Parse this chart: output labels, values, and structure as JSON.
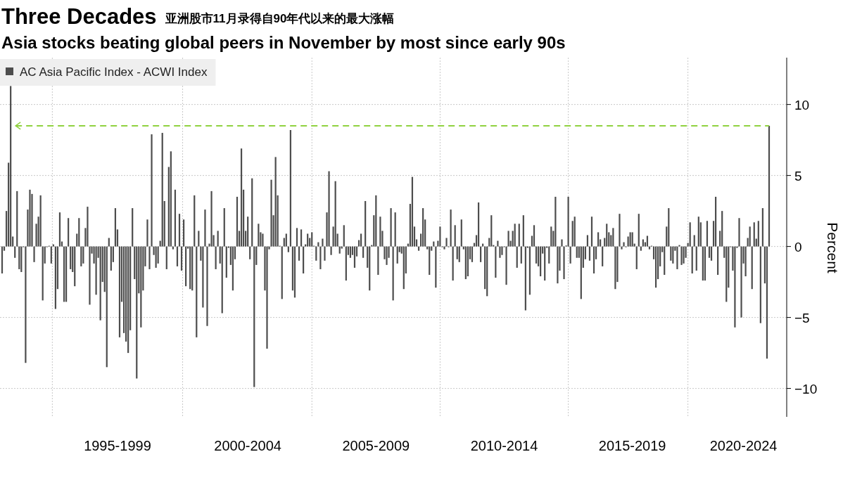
{
  "chart_data": {
    "type": "bar",
    "title": "Three Decades",
    "subtitle": "Asia stocks beating global peers in November by most since early 90s",
    "annotations": [
      "亚洲股市11月录得自90年代以来的最大涨幅"
    ],
    "ylabel": "Percent",
    "categories": [
      null,
      null,
      null,
      null,
      null,
      null,
      null,
      null,
      null,
      null,
      null,
      null,
      null,
      null,
      null,
      null,
      null,
      null,
      null,
      null,
      null,
      null,
      null,
      null,
      null,
      null,
      null,
      null,
      null,
      null,
      null,
      null,
      null,
      null,
      null,
      null,
      null,
      null,
      null,
      null,
      null,
      null,
      null,
      null,
      null,
      null,
      null,
      null,
      null,
      null,
      null,
      null,
      null,
      null,
      "1995-1999",
      null,
      null,
      null,
      null,
      null,
      null,
      null,
      null,
      null,
      null,
      null,
      null,
      null,
      null,
      null,
      null,
      null,
      null,
      null,
      null,
      null,
      null,
      null,
      null,
      null,
      null,
      null,
      null,
      null,
      null,
      null,
      null,
      null,
      null,
      null,
      null,
      null,
      null,
      null,
      null,
      null,
      null,
      null,
      null,
      null,
      null,
      null,
      null,
      null,
      null,
      null,
      null,
      null,
      null,
      null,
      null,
      null,
      null,
      null,
      null,
      "2000-2004",
      null,
      null,
      null,
      null,
      null,
      null,
      null,
      null,
      null,
      null,
      null,
      null,
      null,
      null,
      null,
      null,
      null,
      null,
      null,
      null,
      null,
      null,
      null,
      null,
      null,
      null,
      null,
      null,
      null,
      null,
      null,
      null,
      null,
      null,
      null,
      null,
      null,
      null,
      null,
      null,
      null,
      null,
      null,
      null,
      null,
      null,
      null,
      null,
      null,
      null,
      null,
      null,
      null,
      null,
      null,
      null,
      null,
      null,
      null,
      "2005-2009",
      null,
      null,
      null,
      null,
      null,
      null,
      null,
      null,
      null,
      null,
      null,
      null,
      null,
      null,
      null,
      null,
      null,
      null,
      null,
      null,
      null,
      null,
      null,
      null,
      null,
      null,
      null,
      null,
      null,
      null,
      null,
      null,
      null,
      null,
      null,
      null,
      null,
      null,
      null,
      null,
      null,
      null,
      null,
      null,
      null,
      null,
      null,
      null,
      null,
      null,
      null,
      null,
      null,
      null,
      null,
      null,
      null,
      null,
      null,
      "2010-2014",
      null,
      null,
      null,
      null,
      null,
      null,
      null,
      null,
      null,
      null,
      null,
      null,
      null,
      null,
      null,
      null,
      null,
      null,
      null,
      null,
      null,
      null,
      null,
      null,
      null,
      null,
      null,
      null,
      null,
      null,
      null,
      null,
      null,
      null,
      null,
      null,
      null,
      null,
      null,
      null,
      null,
      null,
      null,
      null,
      null,
      null,
      null,
      null,
      null,
      null,
      null,
      null,
      null,
      null,
      null,
      null,
      null,
      null,
      null,
      "2015-2019",
      null,
      null,
      null,
      null,
      null,
      null,
      null,
      null,
      null,
      null,
      null,
      null,
      null,
      null,
      null,
      null,
      null,
      null,
      null,
      null,
      null,
      null,
      null,
      null,
      null,
      null,
      null,
      null,
      null,
      null,
      null,
      null,
      null,
      null,
      null,
      null,
      null,
      null,
      null,
      null,
      null,
      null,
      null,
      null,
      null,
      null,
      null,
      null,
      null,
      null,
      null,
      "2020-2024",
      null,
      null,
      null,
      null,
      null,
      null,
      null,
      null,
      null,
      null,
      null,
      null
    ],
    "series": [
      {
        "name": "AC Asia Pacific Index - ACWI Index",
        "color": "#4d4d4d",
        "values": [
          -1.9,
          -0.3,
          2.5,
          5.9,
          11.3,
          0.7,
          -0.8,
          3.9,
          -1.6,
          -1.8,
          -0.05,
          -8.2,
          2.6,
          4.0,
          3.7,
          -1.1,
          1.6,
          2.1,
          3.6,
          -3.8,
          -1.2,
          -0.05,
          0.05,
          -1.2,
          0.15,
          -4.4,
          -3.0,
          2.4,
          0.35,
          -3.9,
          -3.9,
          2.0,
          -1.6,
          -1.8,
          -2.8,
          0.9,
          2.0,
          -1.4,
          -1.2,
          1.3,
          2.8,
          -4.1,
          -0.5,
          -1.2,
          -3.4,
          -0.8,
          -5.2,
          -2.5,
          -3.2,
          -8.5,
          0.6,
          -1.7,
          -1.1,
          2.7,
          1.2,
          -6.4,
          -3.9,
          -6.1,
          -6.7,
          -7.5,
          -5.9,
          2.7,
          -2.3,
          -9.3,
          -3.3,
          -5.7,
          -3.1,
          -1.4,
          1.9,
          -1.6,
          7.9,
          -0.6,
          -1.5,
          -1.2,
          0.4,
          8.0,
          3.2,
          -1.6,
          5.6,
          6.7,
          -0.2,
          4.0,
          -1.4,
          2.3,
          -1.7,
          1.9,
          -2.8,
          -0.15,
          -3.0,
          -3.1,
          3.6,
          -6.4,
          1.1,
          -1.0,
          -4.3,
          2.6,
          -5.6,
          0.2,
          3.9,
          0.8,
          -1.6,
          1.1,
          -1.2,
          -4.7,
          2.7,
          -2.2,
          -0.1,
          -1.3,
          -3.1,
          -0.9,
          3.5,
          1.1,
          6.9,
          4.0,
          1.1,
          2.1,
          -0.9,
          4.8,
          -9.9,
          -1.3,
          1.6,
          1.0,
          0.9,
          -3.1,
          -7.2,
          -0.2,
          4.7,
          2.2,
          6.3,
          3.6,
          0.05,
          -3.7,
          0.6,
          0.9,
          -0.4,
          8.2,
          -3.1,
          -3.6,
          1.3,
          -1.0,
          1.2,
          -1.9,
          0.15,
          0.9,
          0.6,
          1.0,
          0.05,
          -1.0,
          0.3,
          -1.6,
          0.55,
          -1.0,
          2.4,
          5.3,
          -0.6,
          1.4,
          4.6,
          0.9,
          -0.5,
          -0.15,
          1.5,
          -2.4,
          -0.6,
          -0.8,
          -0.6,
          -1.5,
          -0.7,
          0.45,
          0.9,
          -0.8,
          3.2,
          -1.5,
          -3.1,
          0.1,
          2.2,
          3.6,
          -2.0,
          2.1,
          1.1,
          -0.9,
          -1.3,
          -0.8,
          2.7,
          -3.8,
          2.4,
          -1.2,
          -0.4,
          -0.5,
          -3.0,
          -1.9,
          0.2,
          3.0,
          4.9,
          1.4,
          0.5,
          -0.3,
          0.9,
          2.7,
          1.9,
          -0.2,
          -2.0,
          -0.3,
          0.35,
          -2.9,
          0.4,
          1.4,
          -0.05,
          -0.2,
          0.6,
          -0.05,
          2.6,
          -2.4,
          1.5,
          -0.9,
          -1.1,
          1.9,
          -0.2,
          -2.3,
          -2.1,
          -0.9,
          -1.1,
          0.25,
          0.8,
          3.1,
          -1.1,
          0.2,
          -3.0,
          -3.5,
          0.6,
          2.2,
          0.1,
          -2.2,
          0.4,
          -0.8,
          -0.6,
          -0.05,
          -2.7,
          1.1,
          0.4,
          1.1,
          1.6,
          -1.5,
          1.6,
          -1.2,
          2.2,
          -4.5,
          -0.1,
          -3.4,
          0.75,
          1.5,
          -1.2,
          -1.4,
          -2.1,
          -0.5,
          -2.4,
          -0.1,
          -1.2,
          1.4,
          1.1,
          3.5,
          -2.6,
          -1.7,
          0.5,
          -2.3,
          0.07,
          3.5,
          -1.2,
          1.8,
          2.1,
          -0.8,
          -0.8,
          -3.7,
          -1.5,
          -0.9,
          0.8,
          -1.0,
          2.1,
          -1.9,
          -0.9,
          1.0,
          0.5,
          -1.4,
          0.6,
          1.6,
          1.0,
          0.8,
          1.3,
          -3.0,
          -2.5,
          2.3,
          -0.2,
          0.3,
          -0.05,
          0.7,
          1.0,
          1.0,
          0.2,
          -1.6,
          2.3,
          -0.3,
          0.5,
          0.3,
          0.75,
          -0.2,
          0.05,
          -0.9,
          -2.9,
          -2.3,
          -1.4,
          -0.4,
          -2.0,
          1.4,
          2.7,
          -1.0,
          -1.2,
          -0.3,
          -1.6,
          0.1,
          -1.3,
          -1.2,
          -0.8,
          0.25,
          1.7,
          -1.9,
          0.8,
          -1.7,
          2.1,
          1.7,
          -2.4,
          -2.4,
          1.8,
          -0.8,
          -1.0,
          1.8,
          3.5,
          -2.0,
          1.1,
          2.5,
          -0.8,
          -3.9,
          -2.9,
          -0.05,
          -1.7,
          -5.7,
          -0.1,
          2.0,
          -5.0,
          -1.2,
          -2.1,
          0.6,
          1.4,
          -3.0,
          1.7,
          0.55,
          1.8,
          -5.4,
          2.7,
          -2.6,
          -7.9,
          8.5
        ]
      }
    ],
    "ylim": [
      -12,
      13.3
    ],
    "yticks": [
      -10,
      -5,
      0,
      5,
      10
    ],
    "grid": true,
    "legend": "top left",
    "ref_lines": [
      {
        "axis": "y",
        "value": 8.5,
        "color": "#8fd13f",
        "line_style": "dashed"
      }
    ]
  }
}
